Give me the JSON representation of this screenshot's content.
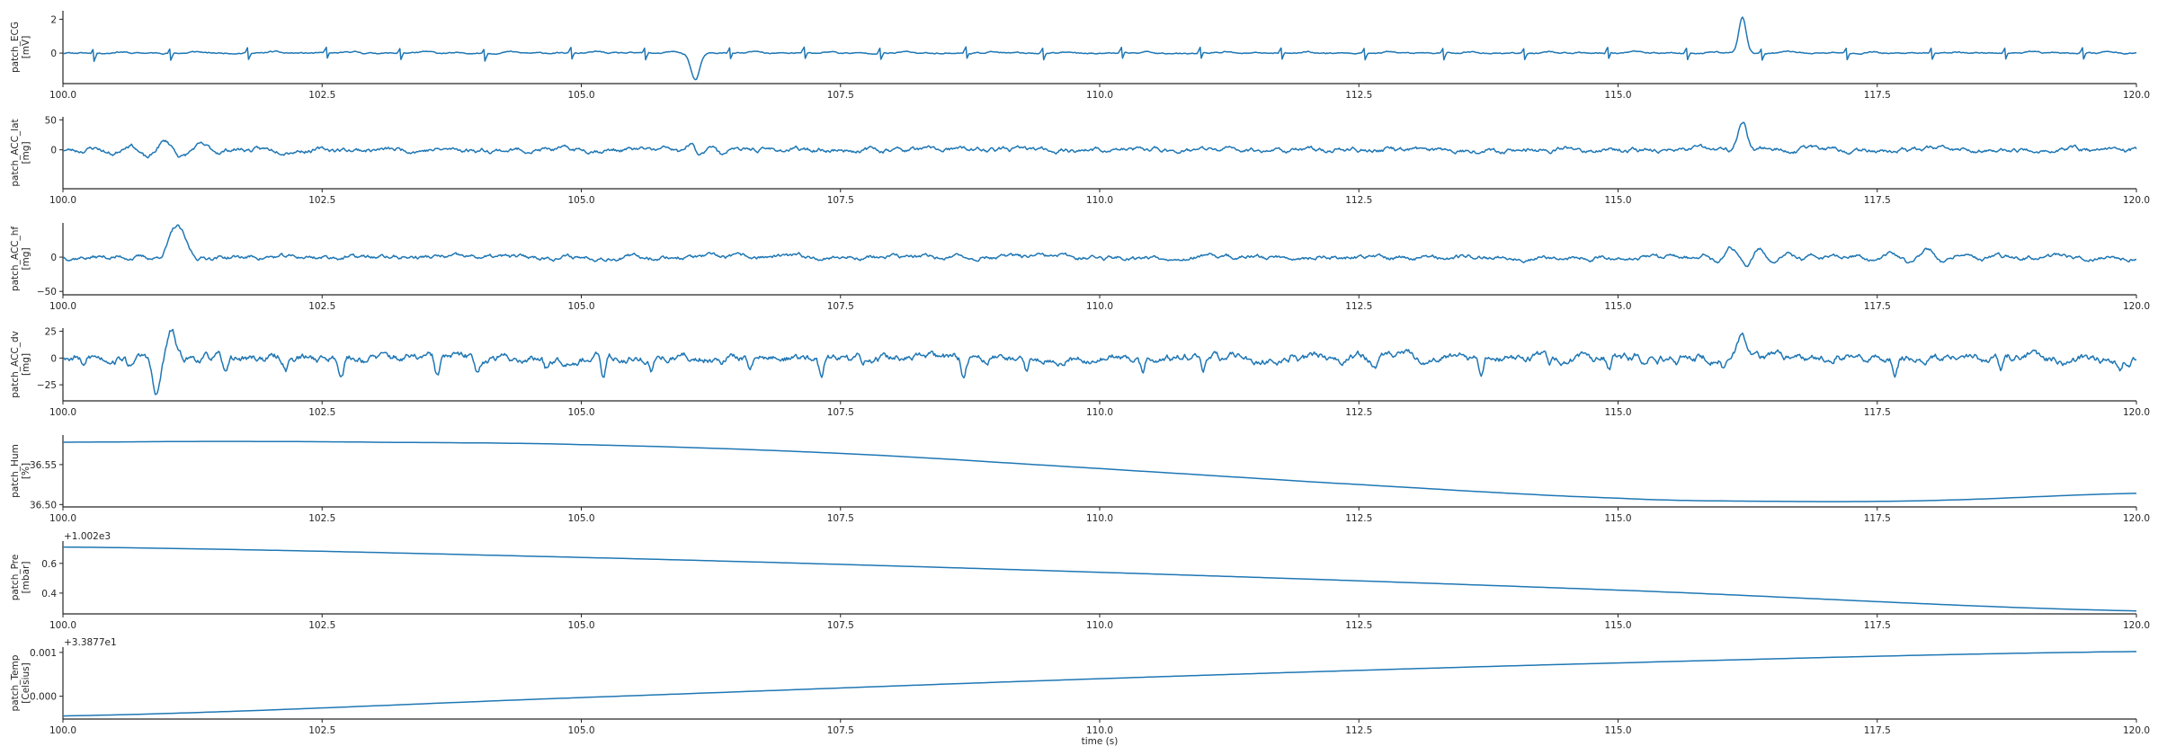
{
  "chart_data": {
    "type": "line",
    "xlabel": "time (s)",
    "x_range": [
      100.0,
      120.0
    ],
    "x_ticks": [
      "100.0",
      "102.5",
      "105.0",
      "107.5",
      "110.0",
      "112.5",
      "115.0",
      "117.5",
      "120.0"
    ],
    "line_color": "#1f77b4",
    "grid": false,
    "panels": [
      {
        "id": "ecg",
        "ylabel": "patch_ECG\n[mV]",
        "ylim": [
          -1.8,
          2.5
        ],
        "y_ticks": [
          2,
          0
        ],
        "y_tick_labels": [
          "2",
          "0"
        ],
        "offset_text": "",
        "signal": {
          "kind": "ecg",
          "seed": 11,
          "amplitude": 0.12,
          "hr_interval": 0.78,
          "events": [
            {
              "t": 106.1,
              "kind": "dip",
              "amp": -1.6,
              "width": 0.12
            },
            {
              "t": 116.2,
              "kind": "spike",
              "amp": 2.1,
              "width": 0.1
            }
          ]
        }
      },
      {
        "id": "acc_lat",
        "ylabel": "patch_ACC_lat\n[mg]",
        "ylim": [
          -65,
          55
        ],
        "y_ticks": [
          50,
          0
        ],
        "y_tick_labels": [
          "50",
          "0"
        ],
        "offset_text": "",
        "signal": {
          "kind": "noise",
          "seed": 23,
          "amplitude": 6,
          "events": [
            {
              "t": 100.9,
              "kind": "burst",
              "amp": 14,
              "width": 0.5
            },
            {
              "t": 106.2,
              "kind": "burst",
              "amp": 10,
              "width": 0.3
            },
            {
              "t": 116.2,
              "kind": "big",
              "amp": 48,
              "width": 0.15
            }
          ]
        }
      },
      {
        "id": "acc_hf",
        "ylabel": "patch_ACC_hf\n[mg]",
        "ylim": [
          -55,
          50
        ],
        "y_ticks": [
          0,
          -50
        ],
        "y_tick_labels": [
          "0",
          "−50"
        ],
        "offset_text": "",
        "signal": {
          "kind": "noise",
          "seed": 37,
          "amplitude": 5,
          "events": [
            {
              "t": 101.1,
              "kind": "big",
              "amp": 44,
              "width": 0.25
            },
            {
              "t": 116.3,
              "kind": "burst",
              "amp": 15,
              "width": 0.4
            },
            {
              "t": 117.9,
              "kind": "burst",
              "amp": 9,
              "width": 0.5
            }
          ]
        }
      },
      {
        "id": "acc_dv",
        "ylabel": "patch_ACC_dv\n[mg]",
        "ylim": [
          -40,
          28
        ],
        "y_ticks": [
          25,
          0,
          -25
        ],
        "y_tick_labels": [
          "25",
          "0",
          "−25"
        ],
        "offset_text": "",
        "signal": {
          "kind": "noise",
          "seed": 53,
          "amplitude": 6,
          "dip_rate": 0.9,
          "dip_amp": -14,
          "events": [
            {
              "t": 100.9,
              "kind": "big",
              "amp": -36,
              "width": 0.12
            },
            {
              "t": 101.05,
              "kind": "big",
              "amp": 24,
              "width": 0.12
            },
            {
              "t": 116.2,
              "kind": "big",
              "amp": 20,
              "width": 0.15
            }
          ]
        }
      },
      {
        "id": "hum",
        "ylabel": "patch_Hum\n[%]",
        "ylim": [
          36.497,
          36.587
        ],
        "y_ticks": [
          36.55,
          36.5
        ],
        "y_tick_labels": [
          "36.55",
          "36.50"
        ],
        "offset_text": "",
        "signal": {
          "kind": "smooth",
          "points": [
            [
              100.0,
              36.578
            ],
            [
              101.5,
              36.579
            ],
            [
              103.0,
              36.578
            ],
            [
              105.0,
              36.575
            ],
            [
              107.5,
              36.564
            ],
            [
              110.0,
              36.545
            ],
            [
              112.5,
              36.525
            ],
            [
              115.0,
              36.508
            ],
            [
              116.5,
              36.504
            ],
            [
              118.0,
              36.505
            ],
            [
              120.0,
              36.514
            ]
          ]
        }
      },
      {
        "id": "pre",
        "ylabel": "patch_Pre\n[mbar]",
        "ylim": [
          0.26,
          0.75
        ],
        "y_ticks": [
          0.6,
          0.4
        ],
        "y_tick_labels": [
          "0.6",
          "0.4"
        ],
        "offset_text": "+1.002e3",
        "signal": {
          "kind": "smooth",
          "points": [
            [
              100.0,
              0.71
            ],
            [
              105.0,
              0.64
            ],
            [
              110.0,
              0.54
            ],
            [
              115.0,
              0.42
            ],
            [
              120.0,
              0.28
            ]
          ]
        }
      },
      {
        "id": "temp",
        "ylabel": "patch_Temp\n[Celsius]",
        "ylim": [
          -0.00052,
          0.00112
        ],
        "y_ticks": [
          0.001,
          0.0
        ],
        "y_tick_labels": [
          "0.001",
          "0.000"
        ],
        "offset_text": "+3.3877e1",
        "signal": {
          "kind": "smooth",
          "points": [
            [
              100.0,
              -0.00045
            ],
            [
              105.0,
              -3e-05
            ],
            [
              110.0,
              0.0004
            ],
            [
              115.0,
              0.00076
            ],
            [
              120.0,
              0.00102
            ]
          ]
        }
      }
    ]
  }
}
